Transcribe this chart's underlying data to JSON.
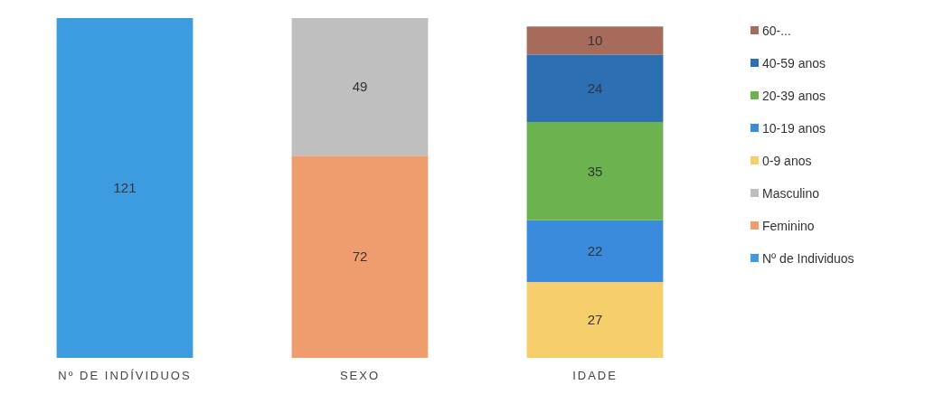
{
  "chart_data": {
    "type": "bar",
    "stacked": true,
    "data_labels": true,
    "legend": "right",
    "categories": [
      "Nº DE INDÍVIDUOS",
      "SEXO",
      "IDADE"
    ],
    "series": [
      {
        "name": "Nº de Individuos",
        "color": "#3d9be0",
        "values": [
          121,
          null,
          null
        ]
      },
      {
        "name": "Feminino",
        "color": "#ef9d6e",
        "values": [
          null,
          72,
          null
        ]
      },
      {
        "name": "Masculino",
        "color": "#bfbfbf",
        "values": [
          null,
          49,
          null
        ]
      },
      {
        "name": "0-9 anos",
        "color": "#f6cf6a",
        "values": [
          null,
          null,
          27
        ]
      },
      {
        "name": "10-19 anos",
        "color": "#3a8bdc",
        "values": [
          null,
          null,
          22
        ]
      },
      {
        "name": "20-39 anos",
        "color": "#6cb24e",
        "values": [
          null,
          null,
          35
        ]
      },
      {
        "name": "40-59 anos",
        "color": "#2d6fb3",
        "values": [
          null,
          null,
          24
        ]
      },
      {
        "name": "60-...",
        "color": "#a66b5b",
        "values": [
          null,
          null,
          10
        ]
      }
    ]
  }
}
